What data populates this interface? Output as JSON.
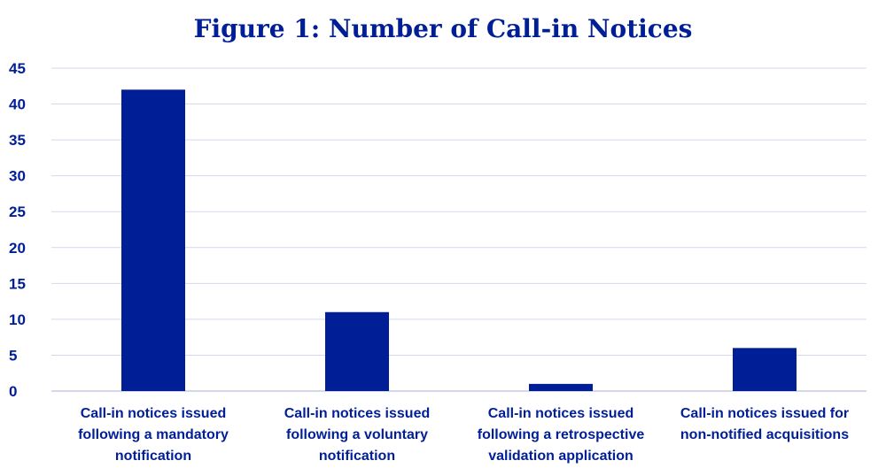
{
  "chart_data": {
    "type": "bar",
    "title": "Figure 1: Number of Call-in Notices",
    "categories": [
      [
        "Call-in notices issued",
        "following a mandatory",
        "notification"
      ],
      [
        "Call-in notices issued",
        "following a voluntary",
        "notification"
      ],
      [
        "Call-in notices issued",
        "following a retrospective",
        "validation application"
      ],
      [
        "Call-in notices issued for",
        "non-notified acquisitions"
      ]
    ],
    "values": [
      42,
      11,
      1,
      6
    ],
    "ylim": [
      0,
      45
    ],
    "yticks": [
      0,
      5,
      10,
      15,
      20,
      25,
      30,
      35,
      40,
      45
    ],
    "xlabel": "",
    "ylabel": "",
    "grid": true,
    "colors": {
      "bar": "#001e96",
      "text": "#001e96",
      "grid": "#d4d9ea",
      "axis": "#c5cbe4"
    }
  }
}
